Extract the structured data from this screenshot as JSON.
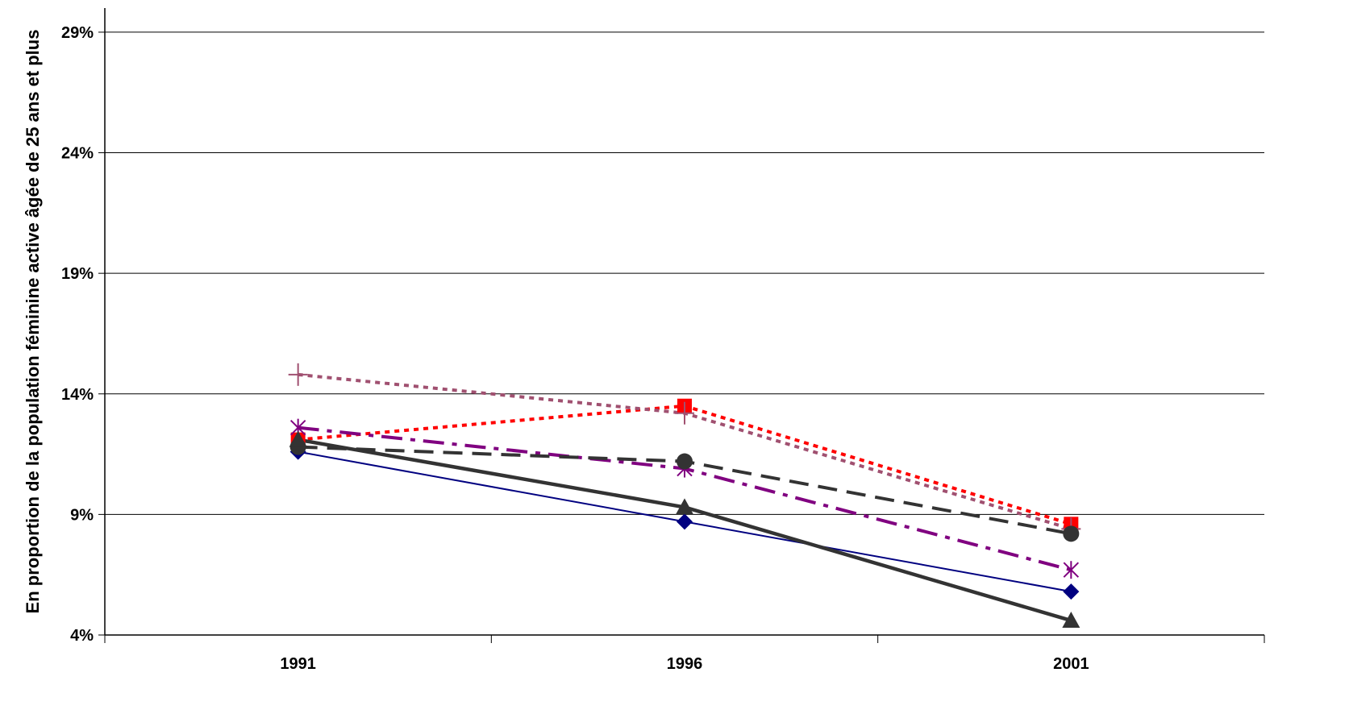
{
  "chart_data": {
    "type": "line",
    "title": "",
    "xlabel": "",
    "ylabel": "En proportion de la population féminine active âgée de 25 ans et plus",
    "x": [
      "1991",
      "1996",
      "2001"
    ],
    "ylim": [
      4,
      30
    ],
    "yticks": [
      4,
      9,
      14,
      19,
      24,
      29
    ],
    "ytick_labels": [
      "4%",
      "9%",
      "14%",
      "19%",
      "24%",
      "29%"
    ],
    "grid": true,
    "legend": "none",
    "series": [
      {
        "values": [
          11.6,
          8.7,
          5.8
        ],
        "color": "#000080",
        "marker": "diamond",
        "line": "solid-thin"
      },
      {
        "values": [
          12.1,
          13.5,
          8.6
        ],
        "color": "#ff0000",
        "marker": "square",
        "line": "dotted"
      },
      {
        "values": [
          14.8,
          13.2,
          8.4
        ],
        "color": "#a05070",
        "marker": "plus",
        "line": "dotted"
      },
      {
        "values": [
          12.6,
          10.9,
          6.7
        ],
        "color": "#800080",
        "marker": "star",
        "line": "dash-dot"
      },
      {
        "values": [
          11.8,
          11.2,
          8.2
        ],
        "color": "#333333",
        "marker": "circle",
        "line": "dashed"
      },
      {
        "values": [
          12.1,
          9.3,
          4.6
        ],
        "color": "#333333",
        "marker": "triangle",
        "line": "solid-thick"
      }
    ]
  }
}
